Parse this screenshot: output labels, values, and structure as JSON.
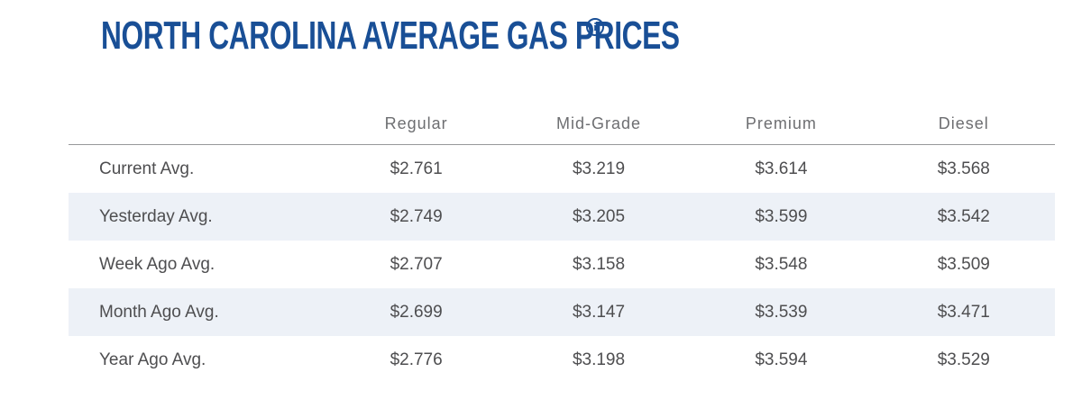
{
  "page": {
    "title": "NORTH CAROLINA AVERAGE GAS PRICES",
    "info_icon_glyph": "i"
  },
  "colors": {
    "title_blue": "#194f96",
    "row_stripe": "#edf1f7",
    "header_text": "#6d6e71",
    "body_text": "#4e4e50",
    "header_rule": "#97989b"
  },
  "table": {
    "columns": [
      "Regular",
      "Mid-Grade",
      "Premium",
      "Diesel"
    ],
    "rows": [
      {
        "label": "Current Avg.",
        "values": [
          "$2.761",
          "$3.219",
          "$3.614",
          "$3.568"
        ]
      },
      {
        "label": "Yesterday Avg.",
        "values": [
          "$2.749",
          "$3.205",
          "$3.599",
          "$3.542"
        ]
      },
      {
        "label": "Week Ago Avg.",
        "values": [
          "$2.707",
          "$3.158",
          "$3.548",
          "$3.509"
        ]
      },
      {
        "label": "Month Ago Avg.",
        "values": [
          "$2.699",
          "$3.147",
          "$3.539",
          "$3.471"
        ]
      },
      {
        "label": "Year Ago Avg.",
        "values": [
          "$2.776",
          "$3.198",
          "$3.594",
          "$3.529"
        ]
      }
    ]
  }
}
